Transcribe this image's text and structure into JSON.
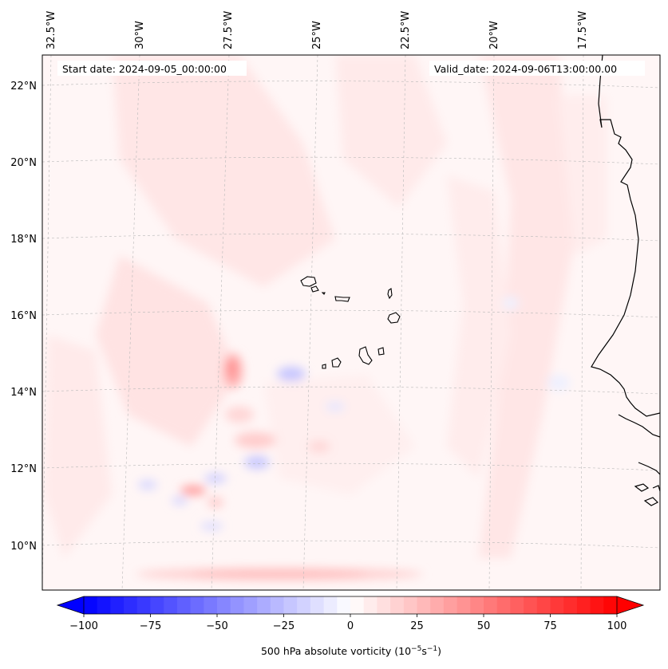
{
  "header": {
    "start_date": "Start date: 2024-09-05_00:00:00",
    "valid_date": "Valid_date: 2024-09-06T13:00:00.00"
  },
  "longitude_ticks": [
    "32.5°W",
    "30°W",
    "27.5°W",
    "25°W",
    "22.5°W",
    "20°W",
    "17.5°W"
  ],
  "latitude_ticks": [
    "22°N",
    "20°N",
    "18°N",
    "16°N",
    "14°N",
    "12°N",
    "10°N"
  ],
  "colorbar": {
    "label": "500 hPa absolute vorticity (10",
    "label_sup1": "−5",
    "label_mid": "s",
    "label_sup2": "−1",
    "label_end": ")",
    "tick_labels": [
      "−100",
      "−75",
      "−50",
      "−25",
      "0",
      "25",
      "50",
      "75",
      "100"
    ],
    "min": -100,
    "max": 100,
    "step": 5,
    "cmap": "bwr",
    "extend": "both"
  },
  "colors": {
    "negative": "#0000ff",
    "neutral": "#ffffff",
    "positive": "#ff0000",
    "coastline": "#000000",
    "gridline": "#b0b0b0"
  },
  "map": {
    "projection": "Lambert conformal",
    "lon_range": [
      -33,
      -15
    ],
    "lat_range": [
      9,
      22.8
    ],
    "variable": "500 hPa absolute vorticity",
    "features": [
      "Cape Verde Islands",
      "West African coastline (Senegal, Gambia, Guinea-Bissau)"
    ]
  }
}
